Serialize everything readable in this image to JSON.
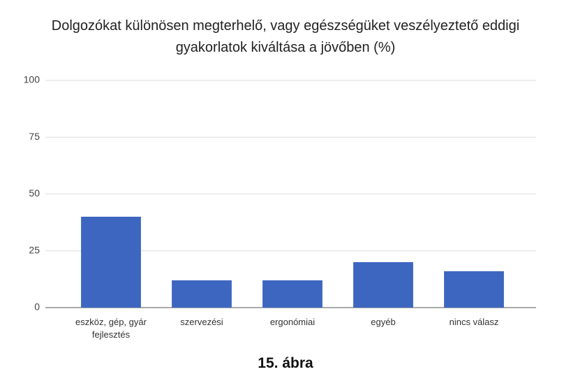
{
  "chart_data": {
    "type": "bar",
    "title": "Dolgozókat különösen megterhelő, vagy egészségüket veszélyeztető eddigi gyakorlatok kiváltása a jövőben (%)",
    "categories": [
      "eszköz, gép, gyár fejlesztés",
      "szervezési",
      "ergonómiai",
      "egyéb",
      "nincs válasz"
    ],
    "values": [
      40,
      12,
      12,
      20,
      16
    ],
    "color": "#3d66c0",
    "ylim": [
      0,
      100
    ],
    "yticks": [
      0,
      25,
      50,
      75,
      100
    ],
    "grid": true,
    "caption": "15. ábra"
  }
}
